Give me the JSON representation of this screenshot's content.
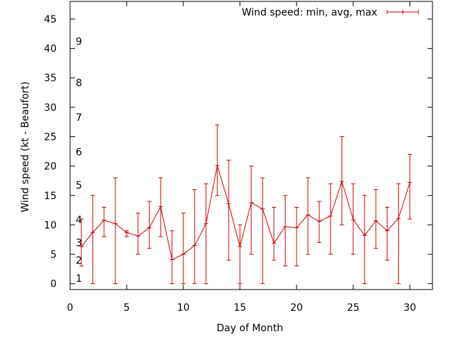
{
  "chart_data": {
    "type": "line",
    "xlabel": "Day of Month",
    "ylabel": "Wind speed (kt - Beaufort)",
    "xlim": [
      0,
      32
    ],
    "ylim": [
      -1,
      48
    ],
    "x_ticks": [
      0,
      5,
      10,
      15,
      20,
      25,
      30
    ],
    "y_ticks": [
      0,
      5,
      10,
      15,
      20,
      25,
      30,
      35,
      40,
      45
    ],
    "grid": false,
    "legend_position": "top-right",
    "series": [
      {
        "name": "Wind speed: min, avg, max",
        "color": "#cc0000",
        "x": [
          1,
          2,
          3,
          4,
          5,
          6,
          7,
          8,
          9,
          10,
          11,
          12,
          13,
          14,
          15,
          16,
          17,
          18,
          19,
          20,
          21,
          22,
          23,
          24,
          25,
          26,
          27,
          28,
          29,
          30
        ],
        "avg": [
          6.3,
          8.7,
          10.8,
          10.2,
          8.7,
          8.1,
          9.5,
          13.1,
          4.1,
          5.0,
          6.5,
          10.2,
          20.1,
          13.6,
          6.3,
          13.8,
          12.7,
          6.9,
          9.7,
          9.5,
          11.7,
          10.6,
          11.5,
          17.4,
          10.9,
          8.2,
          10.7,
          9.0,
          11.1,
          17.2
        ],
        "min": [
          3,
          0,
          8,
          0,
          8,
          5,
          6,
          8,
          0,
          0,
          0,
          0,
          15,
          4,
          0,
          5,
          0,
          4,
          3,
          3,
          5,
          7,
          5,
          10,
          5,
          0,
          6,
          4,
          0,
          11
        ],
        "max": [
          11,
          15,
          13,
          18,
          9,
          12,
          14,
          18,
          9,
          12,
          16,
          17,
          27,
          21,
          10,
          20,
          18,
          13,
          15,
          13,
          18,
          14,
          17,
          25,
          17,
          15,
          16,
          13,
          17,
          22
        ]
      }
    ],
    "annotations": [
      {
        "text": "1",
        "x": 0.5,
        "y": 0.9
      },
      {
        "text": "2",
        "x": 0.5,
        "y": 4
      },
      {
        "text": "3",
        "x": 0.5,
        "y": 7
      },
      {
        "text": "4",
        "x": 0.5,
        "y": 10.9
      },
      {
        "text": "5",
        "x": 0.5,
        "y": 16.8
      },
      {
        "text": "6",
        "x": 0.5,
        "y": 22.4
      },
      {
        "text": "7",
        "x": 0.5,
        "y": 28.3
      },
      {
        "text": "8",
        "x": 0.5,
        "y": 34.2
      },
      {
        "text": "9",
        "x": 0.5,
        "y": 41.2
      }
    ]
  }
}
